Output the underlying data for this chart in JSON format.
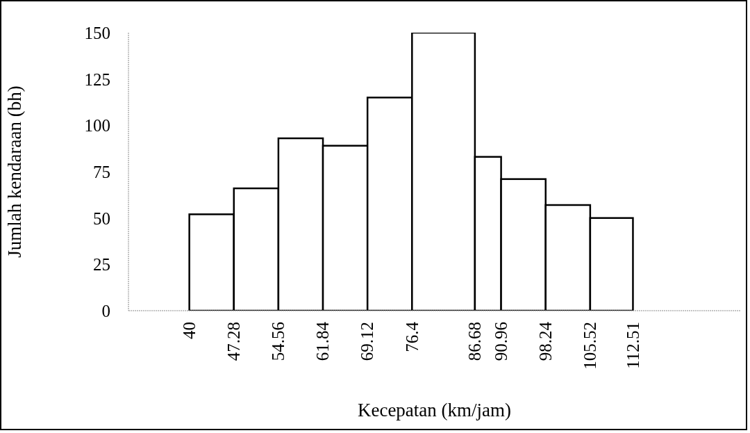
{
  "chart_data": {
    "type": "histogram",
    "xlabel": "Kecepatan (km/jam)",
    "ylabel": "Jumlah kendaraan (bh)",
    "bins": [
      40,
      47.28,
      54.56,
      61.84,
      69.12,
      76.4,
      86.68,
      90.96,
      98.24,
      105.52,
      112.51
    ],
    "values": [
      52,
      66,
      93,
      89,
      115,
      150,
      83,
      71,
      57,
      50
    ],
    "color": "#ffffff",
    "xlim": [
      30,
      130
    ],
    "xticks": [
      40,
      47.28,
      54.56,
      61.84,
      69.12,
      76.4,
      86.68,
      90.96,
      98.24,
      105.52,
      112.51
    ],
    "ylim": [
      0,
      150
    ],
    "yticks": [
      0,
      25,
      50,
      75,
      100,
      125,
      150
    ]
  }
}
